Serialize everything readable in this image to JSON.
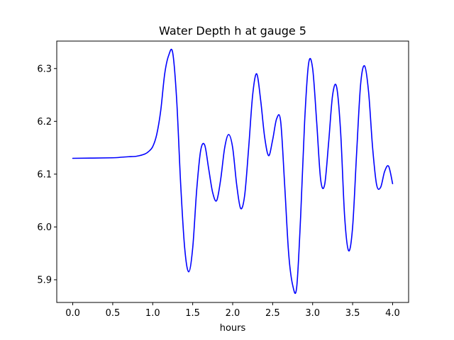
{
  "chart_data": {
    "type": "line",
    "title": "Water Depth h at gauge 5",
    "xlabel": "hours",
    "ylabel": "",
    "xlim": [
      -0.2,
      4.2
    ],
    "ylim": [
      5.857,
      6.352
    ],
    "grid": false,
    "legend": "none",
    "x_ticks": [
      0.0,
      0.5,
      1.0,
      1.5,
      2.0,
      2.5,
      3.0,
      3.5,
      4.0
    ],
    "x_tick_labels": [
      "0.0",
      "0.5",
      "1.0",
      "1.5",
      "2.0",
      "2.5",
      "3.0",
      "3.5",
      "4.0"
    ],
    "y_ticks": [
      5.9,
      6.0,
      6.1,
      6.2,
      6.3
    ],
    "y_tick_labels": [
      "5.9",
      "6.0",
      "6.1",
      "6.2",
      "6.3"
    ],
    "series": [
      {
        "color": "#0000ff",
        "x": [
          0.0,
          0.5,
          0.6,
          0.7,
          0.8,
          0.9,
          0.95,
          1.0,
          1.05,
          1.1,
          1.15,
          1.2,
          1.25,
          1.3,
          1.35,
          1.4,
          1.45,
          1.5,
          1.55,
          1.6,
          1.65,
          1.7,
          1.75,
          1.8,
          1.85,
          1.9,
          1.95,
          2.0,
          2.05,
          2.1,
          2.15,
          2.2,
          2.25,
          2.3,
          2.35,
          2.4,
          2.45,
          2.5,
          2.55,
          2.6,
          2.65,
          2.7,
          2.75,
          2.8,
          2.85,
          2.9,
          2.95,
          3.0,
          3.05,
          3.1,
          3.15,
          3.2,
          3.25,
          3.3,
          3.35,
          3.4,
          3.45,
          3.5,
          3.55,
          3.6,
          3.65,
          3.7,
          3.75,
          3.8,
          3.85,
          3.9,
          3.95,
          4.0
        ],
        "y": [
          6.13,
          6.131,
          6.132,
          6.133,
          6.134,
          6.138,
          6.143,
          6.152,
          6.175,
          6.22,
          6.29,
          6.325,
          6.33,
          6.24,
          6.08,
          5.96,
          5.915,
          5.96,
          6.07,
          6.145,
          6.155,
          6.11,
          6.065,
          6.05,
          6.09,
          6.15,
          6.175,
          6.15,
          6.08,
          6.035,
          6.06,
          6.15,
          6.25,
          6.29,
          6.24,
          6.17,
          6.135,
          6.165,
          6.205,
          6.2,
          6.08,
          5.95,
          5.89,
          5.885,
          6.02,
          6.2,
          6.31,
          6.3,
          6.2,
          6.09,
          6.08,
          6.16,
          6.25,
          6.265,
          6.18,
          6.02,
          5.955,
          6.0,
          6.14,
          6.27,
          6.305,
          6.255,
          6.15,
          6.08,
          6.075,
          6.105,
          6.115,
          6.082
        ]
      }
    ]
  }
}
